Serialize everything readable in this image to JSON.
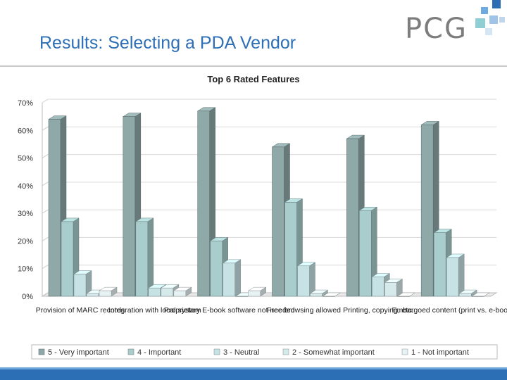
{
  "slide": {
    "title": "Results: Selecting a PDA Vendor",
    "logo_text": "PCG"
  },
  "colors": {
    "title": "#2e6fb6",
    "series": [
      "#8fa8a8",
      "#a9cccc",
      "#c6e2e4",
      "#d6eaec",
      "#e6f2f4"
    ],
    "footer": "#2d6fb5"
  },
  "chart_data": {
    "type": "bar",
    "style": "3d-clustered",
    "title": "Top 6 Rated Features",
    "categories": [
      "Provision of MARC records",
      "Integration with local system",
      "Proprietary E-book software not needed",
      "Free browsing allowed",
      "Printing, copying, etc.",
      "Embargoed content (print vs. e-book)"
    ],
    "series": [
      {
        "name": "5 - Very important",
        "values": [
          64,
          65,
          67,
          54,
          57,
          62
        ]
      },
      {
        "name": "4 - Important",
        "values": [
          27,
          27,
          20,
          34,
          31,
          23
        ]
      },
      {
        "name": "3 - Neutral",
        "values": [
          8,
          3,
          12,
          11,
          7,
          14
        ]
      },
      {
        "name": "2 - Somewhat important",
        "values": [
          1,
          3,
          0,
          1,
          5,
          1
        ]
      },
      {
        "name": "1 - Not important",
        "values": [
          2,
          2,
          2,
          0,
          0,
          0
        ]
      }
    ],
    "ylim": [
      0,
      70
    ],
    "yticks": [
      "0%",
      "10%",
      "20%",
      "30%",
      "40%",
      "50%",
      "60%",
      "70%"
    ],
    "grid": true,
    "legend_position": "bottom"
  }
}
